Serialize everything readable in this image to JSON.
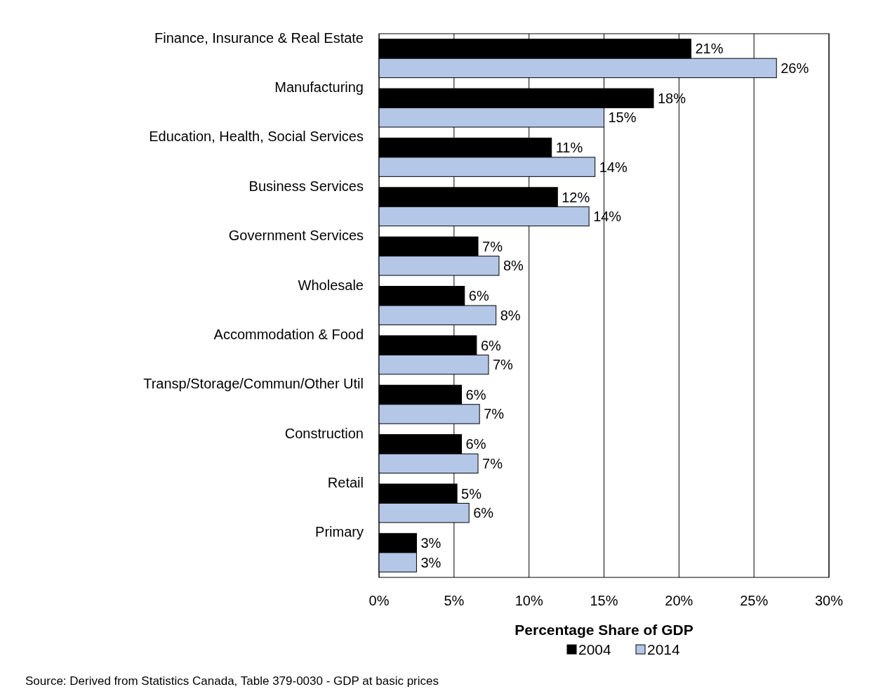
{
  "chart_data": {
    "type": "bar",
    "orientation": "horizontal",
    "xlabel": "Percentage Share of GDP",
    "categories": [
      "Finance, Insurance & Real Estate",
      "Manufacturing",
      "Education, Health, Social Services",
      "Business Services",
      "Government Services",
      "Wholesale",
      "Accommodation & Food",
      "Transp/Storage/Commun/Other Util",
      "Construction",
      "Retail",
      "Primary"
    ],
    "series": [
      {
        "name": "2004",
        "color": "#000000",
        "values": [
          20.8,
          18.3,
          11.5,
          11.9,
          6.6,
          5.7,
          6.5,
          5.5,
          5.5,
          5.2,
          2.5
        ],
        "value_labels": [
          "21%",
          "18%",
          "11%",
          "12%",
          "7%",
          "6%",
          "6%",
          "6%",
          "6%",
          "5%",
          "3%"
        ]
      },
      {
        "name": "2014",
        "color": "#b4c7e7",
        "values": [
          26.5,
          15.0,
          14.4,
          14.0,
          8.0,
          7.8,
          7.3,
          6.7,
          6.6,
          6.0,
          2.5
        ],
        "value_labels": [
          "26%",
          "15%",
          "14%",
          "14%",
          "8%",
          "8%",
          "7%",
          "7%",
          "7%",
          "6%",
          "3%"
        ]
      }
    ],
    "xlim": [
      0,
      30
    ],
    "xticks": [
      {
        "value": 0,
        "label": "0%"
      },
      {
        "value": 5,
        "label": "5%"
      },
      {
        "value": 10,
        "label": "10%"
      },
      {
        "value": 15,
        "label": "15%"
      },
      {
        "value": 20,
        "label": "20%"
      },
      {
        "value": 25,
        "label": "25%"
      },
      {
        "value": 30,
        "label": "30%"
      }
    ],
    "grid": "x",
    "legend": "bottom",
    "annotations": [
      "Source: Derived from Statistics Canada, Table 379-0030 - GDP at basic prices"
    ]
  }
}
